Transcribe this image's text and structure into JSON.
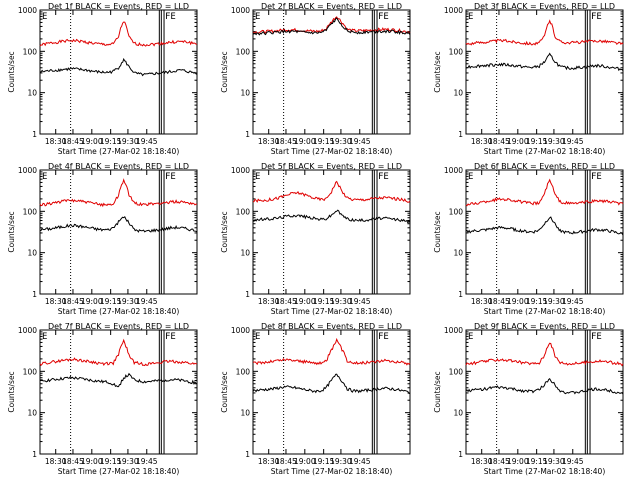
{
  "chart_data": [
    {
      "type": "line",
      "title": "Det 1f BLACK = Events, RED = LLD",
      "xlabel": "Start Time (27-Mar-02 18:18:40)",
      "ylabel": "Counts/sec",
      "yscale": "log",
      "ylim": [
        1,
        1000
      ],
      "x_tick_labels": [
        "18:30",
        "18:45",
        "19:00",
        "19:15",
        "19:30",
        "19:45"
      ],
      "y_tick_labels": [
        "1",
        "10",
        "100",
        "1000"
      ],
      "markers": [
        "E",
        "FE"
      ],
      "series": [
        {
          "color": "#e00000",
          "values": [
            140,
            150,
            158,
            165,
            172,
            178,
            183,
            180,
            173,
            165,
            158,
            152,
            148,
            146,
            150,
            220,
            540,
            220,
            155,
            148,
            145,
            147,
            150,
            155,
            160,
            165,
            170,
            172,
            168,
            160,
            150
          ]
        },
        {
          "color": "#000000",
          "values": [
            32,
            33,
            34,
            35,
            36,
            37,
            38,
            37,
            36,
            35,
            33,
            32,
            31,
            31,
            33,
            40,
            62,
            42,
            30,
            28,
            27,
            28,
            29,
            30,
            31,
            32,
            34,
            35,
            33,
            31,
            30
          ]
        }
      ]
    },
    {
      "type": "line",
      "title": "Det 2f BLACK = Events, RED = LLD",
      "xlabel": "Start Time (27-Mar-02 18:18:40)",
      "ylabel": "Counts/sec",
      "yscale": "log",
      "ylim": [
        1,
        1000
      ],
      "x_tick_labels": [
        "18:30",
        "18:45",
        "19:00",
        "19:15",
        "19:30",
        "19:45"
      ],
      "y_tick_labels": [
        "1",
        "10",
        "100",
        "1000"
      ],
      "markers": [
        "E",
        "FE"
      ],
      "series": [
        {
          "color": "#e00000",
          "values": [
            290,
            295,
            300,
            305,
            310,
            320,
            330,
            335,
            330,
            322,
            315,
            310,
            305,
            310,
            350,
            520,
            700,
            500,
            340,
            320,
            315,
            318,
            322,
            328,
            335,
            340,
            338,
            330,
            318,
            305,
            295
          ]
        },
        {
          "color": "#000000",
          "values": [
            270,
            272,
            275,
            280,
            285,
            292,
            300,
            305,
            300,
            292,
            285,
            280,
            278,
            282,
            320,
            460,
            600,
            440,
            310,
            292,
            288,
            290,
            294,
            300,
            305,
            310,
            306,
            298,
            288,
            278,
            268
          ]
        }
      ]
    },
    {
      "type": "line",
      "title": "Det 3f BLACK = Events, RED = LLD",
      "xlabel": "Start Time (27-Mar-02 18:18:40)",
      "ylabel": "Counts/sec",
      "yscale": "log",
      "ylim": [
        1,
        1000
      ],
      "x_tick_labels": [
        "18:30",
        "18:45",
        "19:00",
        "19:15",
        "19:30",
        "19:45"
      ],
      "y_tick_labels": [
        "1",
        "10",
        "100",
        "1000"
      ],
      "markers": [
        "E",
        "FE"
      ],
      "series": [
        {
          "color": "#e00000",
          "values": [
            150,
            155,
            160,
            165,
            170,
            175,
            180,
            182,
            178,
            170,
            165,
            160,
            155,
            152,
            158,
            230,
            560,
            230,
            170,
            165,
            162,
            165,
            168,
            172,
            176,
            180,
            178,
            172,
            165,
            158,
            150
          ]
        },
        {
          "color": "#000000",
          "values": [
            42,
            43,
            44,
            45,
            46,
            47,
            48,
            48,
            47,
            45,
            44,
            42,
            41,
            41,
            44,
            55,
            82,
            56,
            42,
            40,
            39,
            40,
            41,
            42,
            44,
            45,
            44,
            42,
            40,
            38,
            36
          ]
        }
      ]
    },
    {
      "type": "line",
      "title": "Det 4f BLACK = Events, RED = LLD",
      "xlabel": "Start Time (27-Mar-02 18:18:40)",
      "ylabel": "Counts/sec",
      "yscale": "log",
      "ylim": [
        1,
        1000
      ],
      "x_tick_labels": [
        "18:30",
        "18:45",
        "19:00",
        "19:15",
        "19:30",
        "19:45"
      ],
      "y_tick_labels": [
        "1",
        "10",
        "100",
        "1000"
      ],
      "markers": [
        "E",
        "FE"
      ],
      "series": [
        {
          "color": "#e00000",
          "values": [
            140,
            148,
            156,
            165,
            172,
            180,
            185,
            182,
            175,
            165,
            158,
            150,
            146,
            145,
            152,
            240,
            580,
            240,
            160,
            150,
            146,
            148,
            152,
            158,
            162,
            168,
            172,
            170,
            165,
            158,
            148
          ]
        },
        {
          "color": "#000000",
          "values": [
            36,
            37,
            38,
            40,
            42,
            44,
            46,
            45,
            43,
            41,
            39,
            37,
            36,
            36,
            40,
            55,
            75,
            52,
            36,
            34,
            33,
            34,
            35,
            36,
            38,
            40,
            41,
            40,
            38,
            36,
            34
          ]
        }
      ]
    },
    {
      "type": "line",
      "title": "Det 5f BLACK = Events, RED = LLD",
      "xlabel": "Start Time (27-Mar-02 18:18:40)",
      "ylabel": "Counts/sec",
      "yscale": "log",
      "ylim": [
        1,
        1000
      ],
      "x_tick_labels": [
        "18:30",
        "18:45",
        "19:00",
        "19:15",
        "19:30",
        "19:45"
      ],
      "y_tick_labels": [
        "1",
        "10",
        "100",
        "1000"
      ],
      "markers": [
        "E",
        "FE"
      ],
      "series": [
        {
          "color": "#e00000",
          "values": [
            180,
            182,
            185,
            190,
            200,
            215,
            235,
            260,
            280,
            275,
            250,
            225,
            205,
            195,
            200,
            300,
            520,
            300,
            210,
            195,
            190,
            192,
            198,
            205,
            210,
            215,
            212,
            205,
            195,
            185,
            175
          ]
        },
        {
          "color": "#000000",
          "values": [
            62,
            63,
            64,
            65,
            67,
            70,
            74,
            78,
            80,
            78,
            74,
            70,
            66,
            64,
            66,
            80,
            105,
            80,
            66,
            62,
            60,
            61,
            63,
            65,
            67,
            68,
            66,
            64,
            62,
            58,
            55
          ]
        }
      ]
    },
    {
      "type": "line",
      "title": "Det 6f BLACK = Events, RED = LLD",
      "xlabel": "Start Time (27-Mar-02 18:18:40)",
      "ylabel": "Counts/sec",
      "yscale": "log",
      "ylim": [
        1,
        1000
      ],
      "x_tick_labels": [
        "18:30",
        "18:45",
        "19:00",
        "19:15",
        "19:30",
        "19:45"
      ],
      "y_tick_labels": [
        "1",
        "10",
        "100",
        "1000"
      ],
      "markers": [
        "E",
        "FE"
      ],
      "series": [
        {
          "color": "#e00000",
          "values": [
            145,
            150,
            158,
            165,
            175,
            185,
            195,
            200,
            195,
            185,
            175,
            165,
            158,
            155,
            160,
            260,
            560,
            250,
            170,
            160,
            155,
            158,
            162,
            168,
            175,
            180,
            178,
            172,
            165,
            158,
            150
          ]
        },
        {
          "color": "#000000",
          "values": [
            32,
            33,
            34,
            35,
            36,
            38,
            40,
            40,
            39,
            37,
            35,
            33,
            32,
            32,
            35,
            50,
            72,
            50,
            34,
            31,
            30,
            31,
            32,
            33,
            35,
            36,
            35,
            34,
            32,
            30,
            28
          ]
        }
      ]
    },
    {
      "type": "line",
      "title": "Det 7f BLACK = Events, RED = LLD",
      "xlabel": "Start Time (27-Mar-02 18:18:40)",
      "ylabel": "Counts/sec",
      "yscale": "log",
      "ylim": [
        1,
        1000
      ],
      "x_tick_labels": [
        "18:30",
        "18:45",
        "19:00",
        "19:15",
        "19:30",
        "19:45"
      ],
      "y_tick_labels": [
        "1",
        "10",
        "100",
        "1000"
      ],
      "markers": [
        "E",
        "FE"
      ],
      "series": [
        {
          "color": "#e00000",
          "values": [
            150,
            158,
            165,
            172,
            180,
            188,
            195,
            192,
            185,
            175,
            168,
            160,
            155,
            153,
            160,
            250,
            540,
            240,
            165,
            155,
            150,
            153,
            158,
            165,
            170,
            175,
            172,
            168,
            162,
            155,
            148
          ]
        },
        {
          "color": "#000000",
          "values": [
            58,
            60,
            62,
            64,
            66,
            68,
            70,
            68,
            66,
            63,
            60,
            58,
            56,
            55,
            50,
            40,
            70,
            82,
            62,
            58,
            56,
            57,
            58,
            60,
            62,
            63,
            62,
            60,
            58,
            55,
            52
          ]
        }
      ]
    },
    {
      "type": "line",
      "title": "Det 8f BLACK = Events, RED = LLD",
      "xlabel": "Start Time (27-Mar-02 18:18:40)",
      "ylabel": "Counts/sec",
      "yscale": "log",
      "ylim": [
        1,
        1000
      ],
      "x_tick_labels": [
        "18:30",
        "18:45",
        "19:00",
        "19:15",
        "19:30",
        "19:45"
      ],
      "y_tick_labels": [
        "1",
        "10",
        "100",
        "1000"
      ],
      "markers": [
        "E",
        "FE"
      ],
      "series": [
        {
          "color": "#e00000",
          "values": [
            155,
            160,
            165,
            170,
            178,
            185,
            192,
            190,
            185,
            178,
            170,
            165,
            160,
            158,
            175,
            320,
            560,
            330,
            180,
            165,
            160,
            162,
            166,
            172,
            178,
            182,
            180,
            175,
            168,
            160,
            152
          ]
        },
        {
          "color": "#000000",
          "values": [
            34,
            35,
            36,
            37,
            38,
            40,
            42,
            41,
            40,
            38,
            36,
            34,
            33,
            34,
            40,
            60,
            85,
            58,
            38,
            34,
            33,
            34,
            35,
            36,
            38,
            39,
            38,
            37,
            35,
            33,
            31
          ]
        }
      ]
    },
    {
      "type": "line",
      "title": "Det 9f BLACK = Events, RED = LLD",
      "xlabel": "Start Time (27-Mar-02 18:18:40)",
      "ylabel": "Counts/sec",
      "yscale": "log",
      "ylim": [
        1,
        1000
      ],
      "x_tick_labels": [
        "18:30",
        "18:45",
        "19:00",
        "19:15",
        "19:30",
        "19:45"
      ],
      "y_tick_labels": [
        "1",
        "10",
        "100",
        "1000"
      ],
      "markers": [
        "E",
        "FE"
      ],
      "series": [
        {
          "color": "#e00000",
          "values": [
            150,
            155,
            162,
            170,
            178,
            185,
            192,
            190,
            184,
            176,
            168,
            162,
            156,
            154,
            160,
            240,
            520,
            230,
            165,
            155,
            152,
            155,
            160,
            165,
            172,
            178,
            176,
            170,
            162,
            155,
            148
          ]
        },
        {
          "color": "#000000",
          "values": [
            34,
            35,
            36,
            37,
            38,
            40,
            41,
            40,
            39,
            37,
            35,
            34,
            33,
            33,
            36,
            48,
            65,
            48,
            34,
            31,
            30,
            31,
            32,
            34,
            36,
            37,
            36,
            35,
            33,
            31,
            29
          ]
        }
      ]
    }
  ]
}
